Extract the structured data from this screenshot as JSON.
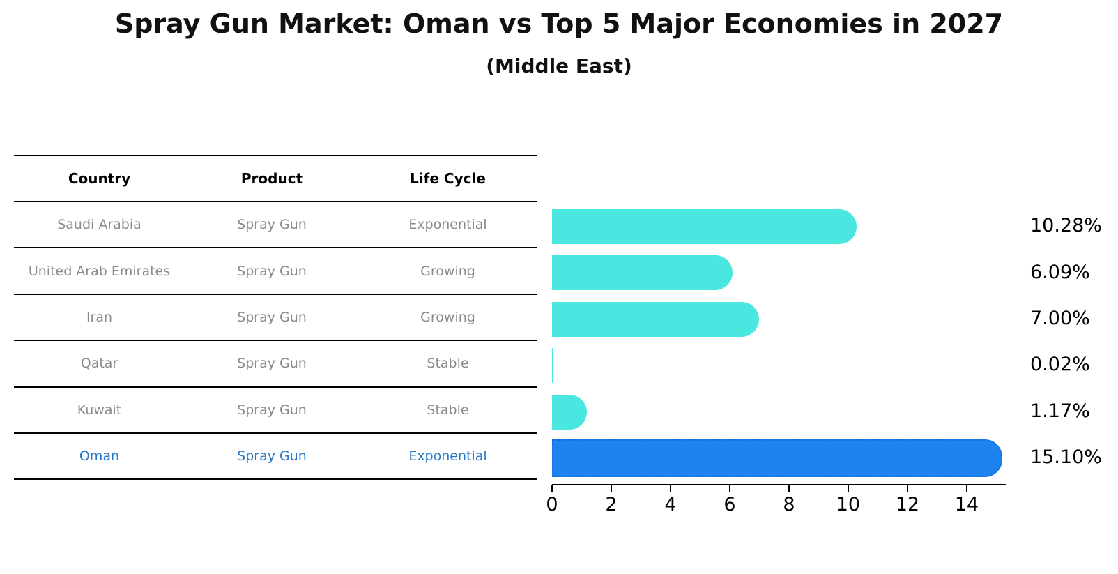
{
  "title": "Spray Gun Market: Oman vs Top 5 Major Economies in 2027",
  "subtitle": "(Middle East)",
  "table": {
    "headers": [
      "Country",
      "Product",
      "Life Cycle"
    ],
    "rows": [
      {
        "country": "Saudi Arabia",
        "product": "Spray Gun",
        "life_cycle": "Exponential",
        "highlight": false
      },
      {
        "country": "United Arab Emirates",
        "product": "Spray Gun",
        "life_cycle": "Growing",
        "highlight": false
      },
      {
        "country": "Iran",
        "product": "Spray Gun",
        "life_cycle": "Growing",
        "highlight": false
      },
      {
        "country": "Qatar",
        "product": "Spray Gun",
        "life_cycle": "Stable",
        "highlight": false
      },
      {
        "country": "Kuwait",
        "product": "Spray Gun",
        "life_cycle": "Stable",
        "highlight": false
      },
      {
        "country": "Oman",
        "product": "Spray Gun",
        "life_cycle": "Exponential",
        "highlight": true
      }
    ]
  },
  "chart_data": {
    "type": "bar",
    "orientation": "horizontal",
    "title": "Spray Gun Market: Oman vs Top 5 Major Economies in 2027",
    "subtitle": "(Middle East)",
    "categories": [
      "Saudi Arabia",
      "United Arab Emirates",
      "Iran",
      "Qatar",
      "Kuwait",
      "Oman"
    ],
    "values": [
      10.28,
      6.09,
      7.0,
      0.02,
      1.17,
      15.1
    ],
    "value_labels": [
      "10.28%",
      "6.09%",
      "7.00%",
      "0.02%",
      "1.17%",
      "15.10%"
    ],
    "highlight_category": "Oman",
    "x_ticks": [
      0,
      2,
      4,
      6,
      8,
      10,
      12,
      14
    ],
    "xlim": [
      0,
      15.25
    ],
    "grid": false,
    "legend": "none",
    "colors": {
      "bar_default": "#4ae7e1",
      "bar_highlight": "#1e82f0",
      "bar_highlight_border": "#0f6cd6",
      "highlight_text": "#2878c8",
      "muted_text": "#8a8a8a",
      "text": "#000000"
    }
  }
}
